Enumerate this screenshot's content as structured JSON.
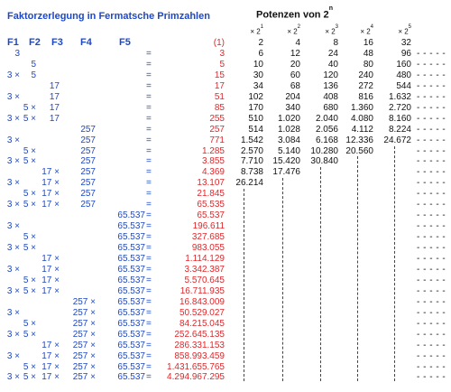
{
  "title": "Faktorzerlegung in Fermatsche Primzahlen",
  "powers_title": "Potenzen  von 2",
  "powers_title_exp": "n",
  "col_headers": [
    "F1",
    "F2",
    "F3",
    "F4",
    "F5"
  ],
  "power_headers": [
    {
      "base": "× 2",
      "exp": "1"
    },
    {
      "base": "× 2",
      "exp": "2"
    },
    {
      "base": "× 2",
      "exp": "3"
    },
    {
      "base": "× 2",
      "exp": "4"
    },
    {
      "base": "× 2",
      "exp": "5"
    }
  ],
  "rows": [
    {
      "f1": "",
      "f2": "",
      "f3": "",
      "f4": "",
      "f5": "",
      "eq": "",
      "value": "(1)",
      "powers": [
        "2",
        "4",
        "8",
        "16",
        "32"
      ]
    },
    {
      "f1": "3",
      "f2": "",
      "f3": "",
      "f4": "",
      "f5": "",
      "eq": "=",
      "value": "3",
      "powers": [
        "6",
        "12",
        "24",
        "48",
        "96"
      ]
    },
    {
      "f1": "",
      "f2": "5",
      "f3": "",
      "f4": "",
      "f5": "",
      "eq": "=",
      "value": "5",
      "powers": [
        "10",
        "20",
        "40",
        "80",
        "160"
      ]
    },
    {
      "f1": "3 ×",
      "f2": "5",
      "f3": "",
      "f4": "",
      "f5": "",
      "eq": "=",
      "value": "15",
      "powers": [
        "30",
        "60",
        "120",
        "240",
        "480"
      ]
    },
    {
      "f1": "",
      "f2": "",
      "f3": "17",
      "f4": "",
      "f5": "",
      "eq": "=",
      "value": "17",
      "powers": [
        "34",
        "68",
        "136",
        "272",
        "544"
      ]
    },
    {
      "f1": "3 ×",
      "f2": "",
      "f3": "17",
      "f4": "",
      "f5": "",
      "eq": "=",
      "value": "51",
      "powers": [
        "102",
        "204",
        "408",
        "816",
        "1.632"
      ]
    },
    {
      "f1": "",
      "f2": "5 ×",
      "f3": "17",
      "f4": "",
      "f5": "",
      "eq": "=",
      "value": "85",
      "powers": [
        "170",
        "340",
        "680",
        "1.360",
        "2.720"
      ]
    },
    {
      "f1": "3 ×",
      "f2": "5 ×",
      "f3": "17",
      "f4": "",
      "f5": "",
      "eq": "=",
      "value": "255",
      "powers": [
        "510",
        "1.020",
        "2.040",
        "4.080",
        "8.160"
      ]
    },
    {
      "f1": "",
      "f2": "",
      "f3": "",
      "f4": "257",
      "f5": "",
      "eq": "=",
      "value": "257",
      "powers": [
        "514",
        "1.028",
        "2.056",
        "4.112",
        "8.224"
      ]
    },
    {
      "f1": "3 ×",
      "f2": "",
      "f3": "",
      "f4": "257",
      "f5": "",
      "eq": "=",
      "value": "771",
      "powers": [
        "1.542",
        "3.084",
        "6.168",
        "12.336",
        "24.672"
      ]
    },
    {
      "f1": "",
      "f2": "5 ×",
      "f3": "",
      "f4": "257",
      "f5": "",
      "eq": "=",
      "value": "1.285",
      "powers": [
        "2.570",
        "5.140",
        "10.280",
        "20.560",
        ""
      ]
    },
    {
      "f1": "3 ×",
      "f2": "5 ×",
      "f3": "",
      "f4": "257",
      "f5": "",
      "eq": "=",
      "value": "3.855",
      "powers": [
        "7.710",
        "15.420",
        "30.840",
        "",
        ""
      ]
    },
    {
      "f1": "",
      "f2": "",
      "f3": "17 ×",
      "f4": "257",
      "f5": "",
      "eq": "=",
      "value": "4.369",
      "powers": [
        "8.738",
        "17.476",
        "",
        "",
        ""
      ]
    },
    {
      "f1": "3 ×",
      "f2": "",
      "f3": "17 ×",
      "f4": "257",
      "f5": "",
      "eq": "=",
      "value": "13.107",
      "powers": [
        "26.214",
        "",
        "",
        "",
        ""
      ]
    },
    {
      "f1": "",
      "f2": "5 ×",
      "f3": "17 ×",
      "f4": "257",
      "f5": "",
      "eq": "=",
      "value": "21.845",
      "powers": [
        "",
        "",
        "",
        "",
        ""
      ]
    },
    {
      "f1": "3 ×",
      "f2": "5 ×",
      "f3": "17 ×",
      "f4": "257",
      "f5": "",
      "eq": "=",
      "value": "65.535",
      "powers": [
        "",
        "",
        "",
        "",
        ""
      ]
    },
    {
      "f1": "",
      "f2": "",
      "f3": "",
      "f4": "",
      "f5": "65.537",
      "eq": "=",
      "value": "65.537",
      "powers": [
        "",
        "",
        "",
        "",
        ""
      ]
    },
    {
      "f1": "3 ×",
      "f2": "",
      "f3": "",
      "f4": "",
      "f5": "65.537",
      "eq": "=",
      "value": "196.611",
      "powers": [
        "",
        "",
        "",
        "",
        ""
      ]
    },
    {
      "f1": "",
      "f2": "5 ×",
      "f3": "",
      "f4": "",
      "f5": "65.537",
      "eq": "=",
      "value": "327.685",
      "powers": [
        "",
        "",
        "",
        "",
        ""
      ]
    },
    {
      "f1": "3 ×",
      "f2": "5 ×",
      "f3": "",
      "f4": "",
      "f5": "65.537",
      "eq": "=",
      "value": "983.055",
      "powers": [
        "",
        "",
        "",
        "",
        ""
      ]
    },
    {
      "f1": "",
      "f2": "",
      "f3": "17 ×",
      "f4": "",
      "f5": "65.537",
      "eq": "=",
      "value": "1.114.129",
      "powers": [
        "",
        "",
        "",
        "",
        ""
      ]
    },
    {
      "f1": "3 ×",
      "f2": "",
      "f3": "17 ×",
      "f4": "",
      "f5": "65.537",
      "eq": "=",
      "value": "3.342.387",
      "powers": [
        "",
        "",
        "",
        "",
        ""
      ]
    },
    {
      "f1": "",
      "f2": "5 ×",
      "f3": "17 ×",
      "f4": "",
      "f5": "65.537",
      "eq": "=",
      "value": "5.570.645",
      "powers": [
        "",
        "",
        "",
        "",
        ""
      ]
    },
    {
      "f1": "3 ×",
      "f2": "5 ×",
      "f3": "17 ×",
      "f4": "",
      "f5": "65.537",
      "eq": "=",
      "value": "16.711.935",
      "powers": [
        "",
        "",
        "",
        "",
        ""
      ]
    },
    {
      "f1": "",
      "f2": "",
      "f3": "",
      "f4": "257 ×",
      "f5": "65.537",
      "eq": "=",
      "value": "16.843.009",
      "powers": [
        "",
        "",
        "",
        "",
        ""
      ]
    },
    {
      "f1": "3 ×",
      "f2": "",
      "f3": "",
      "f4": "257 ×",
      "f5": "65.537",
      "eq": "=",
      "value": "50.529.027",
      "powers": [
        "",
        "",
        "",
        "",
        ""
      ]
    },
    {
      "f1": "",
      "f2": "5 ×",
      "f3": "",
      "f4": "257 ×",
      "f5": "65.537",
      "eq": "=",
      "value": "84.215.045",
      "powers": [
        "",
        "",
        "",
        "",
        ""
      ]
    },
    {
      "f1": "3 ×",
      "f2": "5 ×",
      "f3": "",
      "f4": "257 ×",
      "f5": "65.537",
      "eq": "=",
      "value": "252.645.135",
      "powers": [
        "",
        "",
        "",
        "",
        ""
      ]
    },
    {
      "f1": "",
      "f2": "",
      "f3": "17 ×",
      "f4": "257 ×",
      "f5": "65.537",
      "eq": "=",
      "value": "286.331.153",
      "powers": [
        "",
        "",
        "",
        "",
        ""
      ]
    },
    {
      "f1": "3 ×",
      "f2": "",
      "f3": "17 ×",
      "f4": "257 ×",
      "f5": "65.537",
      "eq": "=",
      "value": "858.993.459",
      "powers": [
        "",
        "",
        "",
        "",
        ""
      ]
    },
    {
      "f1": "",
      "f2": "5 ×",
      "f3": "17 ×",
      "f4": "257 ×",
      "f5": "65.537",
      "eq": "=",
      "value": "1.431.655.765",
      "powers": [
        "",
        "",
        "",
        "",
        ""
      ]
    },
    {
      "f1": "3 ×",
      "f2": "5 ×",
      "f3": "17 ×",
      "f4": "257 ×",
      "f5": "65.537",
      "eq": "=",
      "value": "4.294.967.295",
      "powers": [
        "",
        "",
        "",
        "",
        ""
      ]
    }
  ],
  "dash_text": "- - - - -",
  "colors": {
    "blue": "#1f49c4",
    "red": "#e0272b",
    "text": "#111111"
  }
}
